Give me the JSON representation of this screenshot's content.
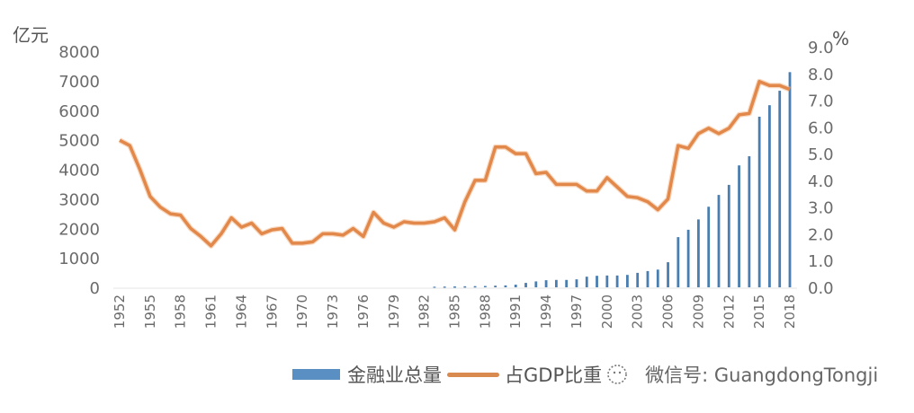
{
  "chart_data": {
    "type": "bar+line",
    "title": "",
    "left_axis": {
      "unit_label": "亿元",
      "ticks": [
        0,
        1000,
        2000,
        3000,
        4000,
        5000,
        6000,
        7000,
        8000
      ],
      "ylim": [
        0,
        8000
      ]
    },
    "right_axis": {
      "unit_label": "%",
      "ticks": [
        "0.0",
        "1.0",
        "2.0",
        "3.0",
        "4.0",
        "5.0",
        "6.0",
        "7.0",
        "8.0",
        "9.0"
      ],
      "ylim": [
        0,
        9
      ]
    },
    "x_tick_labels": [
      "1952",
      "1955",
      "1958",
      "1961",
      "1964",
      "1967",
      "1970",
      "1973",
      "1976",
      "1979",
      "1982",
      "1985",
      "1988",
      "1991",
      "1994",
      "1997",
      "2000",
      "2003",
      "2006",
      "2009",
      "2012",
      "2015",
      "2018"
    ],
    "x": [
      1952,
      1953,
      1954,
      1955,
      1956,
      1957,
      1958,
      1959,
      1960,
      1961,
      1962,
      1963,
      1964,
      1965,
      1966,
      1967,
      1968,
      1969,
      1970,
      1971,
      1972,
      1973,
      1974,
      1975,
      1976,
      1977,
      1978,
      1979,
      1980,
      1981,
      1982,
      1983,
      1984,
      1985,
      1986,
      1987,
      1988,
      1989,
      1990,
      1991,
      1992,
      1993,
      1994,
      1995,
      1996,
      1997,
      1998,
      1999,
      2000,
      2001,
      2002,
      2003,
      2004,
      2005,
      2006,
      2007,
      2008,
      2009,
      2010,
      2011,
      2012,
      2013,
      2014,
      2015,
      2016,
      2017,
      2018
    ],
    "series": [
      {
        "name": "金融业总量",
        "type": "bar",
        "axis": "left",
        "color": "#4a7eb0",
        "values": [
          null,
          null,
          null,
          null,
          null,
          null,
          null,
          null,
          null,
          null,
          null,
          null,
          null,
          null,
          null,
          null,
          null,
          null,
          null,
          null,
          null,
          null,
          null,
          null,
          null,
          null,
          null,
          null,
          null,
          null,
          null,
          20,
          25,
          30,
          35,
          40,
          45,
          55,
          65,
          90,
          150,
          200,
          240,
          250,
          250,
          270,
          360,
          390,
          400,
          400,
          420,
          490,
          550,
          600,
          850,
          1700,
          1950,
          2300,
          2730,
          3130,
          3470,
          4130,
          4440,
          5780,
          6170,
          6660,
          7290
        ]
      },
      {
        "name": "占GDP比重",
        "type": "line",
        "axis": "right",
        "color": "#e2884a",
        "values": [
          5.5,
          5.3,
          4.4,
          3.4,
          3.0,
          2.75,
          2.7,
          2.2,
          1.9,
          1.55,
          2.0,
          2.6,
          2.25,
          2.4,
          2.0,
          2.15,
          2.2,
          1.65,
          1.65,
          1.7,
          2.0,
          2.0,
          1.95,
          2.2,
          1.9,
          2.8,
          2.4,
          2.25,
          2.45,
          2.4,
          2.4,
          2.45,
          2.6,
          2.15,
          3.2,
          4.0,
          4.0,
          5.25,
          5.25,
          5.0,
          5.0,
          4.25,
          4.3,
          3.85,
          3.85,
          3.85,
          3.6,
          3.6,
          4.1,
          3.75,
          3.4,
          3.35,
          3.2,
          2.9,
          3.3,
          5.3,
          5.2,
          5.75,
          5.95,
          5.75,
          5.95,
          6.45,
          6.5,
          7.7,
          7.55,
          7.55,
          7.4
        ]
      }
    ],
    "legend": {
      "position": "bottom",
      "entries": [
        "金融业总量",
        "占GDP比重"
      ]
    },
    "grid": false
  },
  "legend": {
    "bar_label": "金融业总量",
    "line_label": "占GDP比重",
    "watermark": "微信号: GuangdongTongji"
  }
}
